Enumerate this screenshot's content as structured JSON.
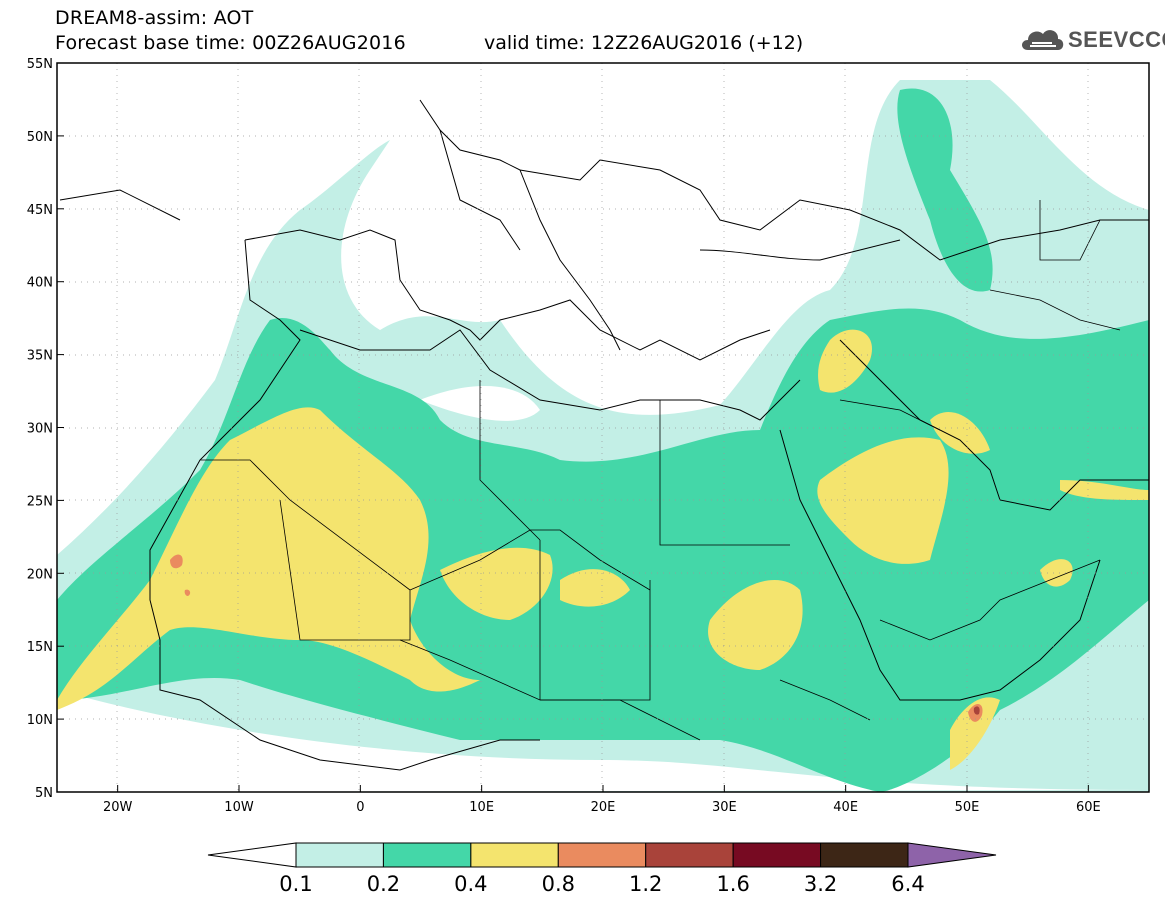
{
  "header": {
    "title": "DREAM8-assim: AOT",
    "base_time": "Forecast base time: 00Z26AUG2016",
    "valid_time": "valid time: 12Z26AUG2016 (+12)"
  },
  "logo": {
    "text": "SEEVCCC",
    "icon": "cloud-icon"
  },
  "map": {
    "lon_range": [
      -25,
      65
    ],
    "lat_range": [
      5,
      55
    ],
    "lat_ticks": [
      "55N",
      "50N",
      "45N",
      "40N",
      "35N",
      "30N",
      "25N",
      "20N",
      "15N",
      "10N",
      "5N"
    ],
    "lon_ticks": [
      "20W",
      "10W",
      "0",
      "10E",
      "20E",
      "30E",
      "40E",
      "50E",
      "60E"
    ],
    "grid": "dotted"
  },
  "colorbar": {
    "levels": [
      "0.1",
      "0.2",
      "0.4",
      "0.8",
      "1.2",
      "1.6",
      "3.2",
      "6.4"
    ],
    "colors": [
      "#ffffff",
      "#c3efe6",
      "#44d7a8",
      "#f4e46e",
      "#ea8b5f",
      "#a9433a",
      "#770a22",
      "#3d2616",
      "#8e63a9"
    ]
  }
}
